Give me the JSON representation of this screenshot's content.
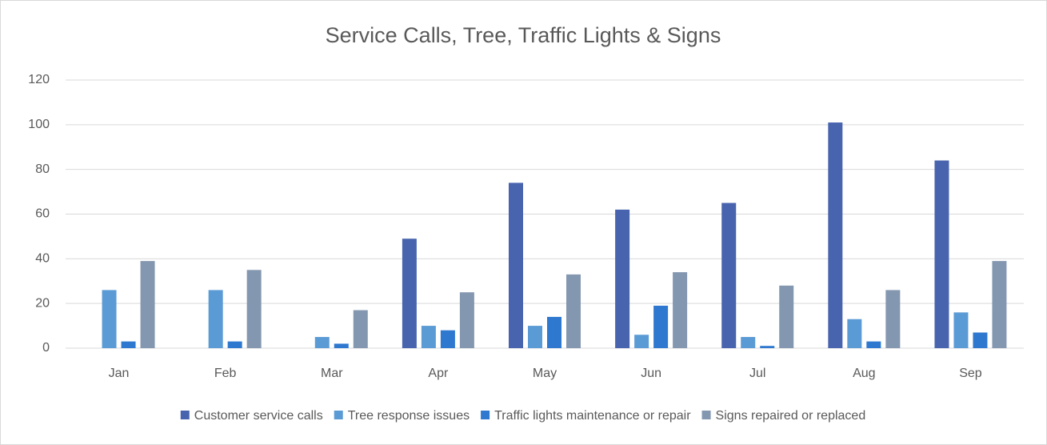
{
  "chart_data": {
    "type": "bar",
    "title": "Service Calls, Tree, Traffic Lights & Signs",
    "categories": [
      "Jan",
      "Feb",
      "Mar",
      "Apr",
      "May",
      "Jun",
      "Jul",
      "Aug",
      "Sep"
    ],
    "series": [
      {
        "name": "Customer service calls",
        "color": "#4864ae",
        "values": [
          null,
          null,
          null,
          49,
          74,
          62,
          65,
          101,
          84
        ]
      },
      {
        "name": "Tree response issues",
        "color": "#5b9bd5",
        "values": [
          26,
          26,
          5,
          10,
          10,
          6,
          5,
          13,
          16
        ]
      },
      {
        "name": "Traffic lights maintenance or repair",
        "color": "#2e78cf",
        "values": [
          3,
          3,
          2,
          8,
          14,
          19,
          1,
          3,
          7
        ]
      },
      {
        "name": "Signs repaired or replaced",
        "color": "#8497b0",
        "values": [
          39,
          35,
          17,
          25,
          33,
          34,
          28,
          26,
          39
        ]
      }
    ],
    "ylim": [
      0,
      120
    ],
    "yticks": [
      0,
      20,
      40,
      60,
      80,
      100,
      120
    ],
    "grid": true,
    "legend": "bottom"
  }
}
